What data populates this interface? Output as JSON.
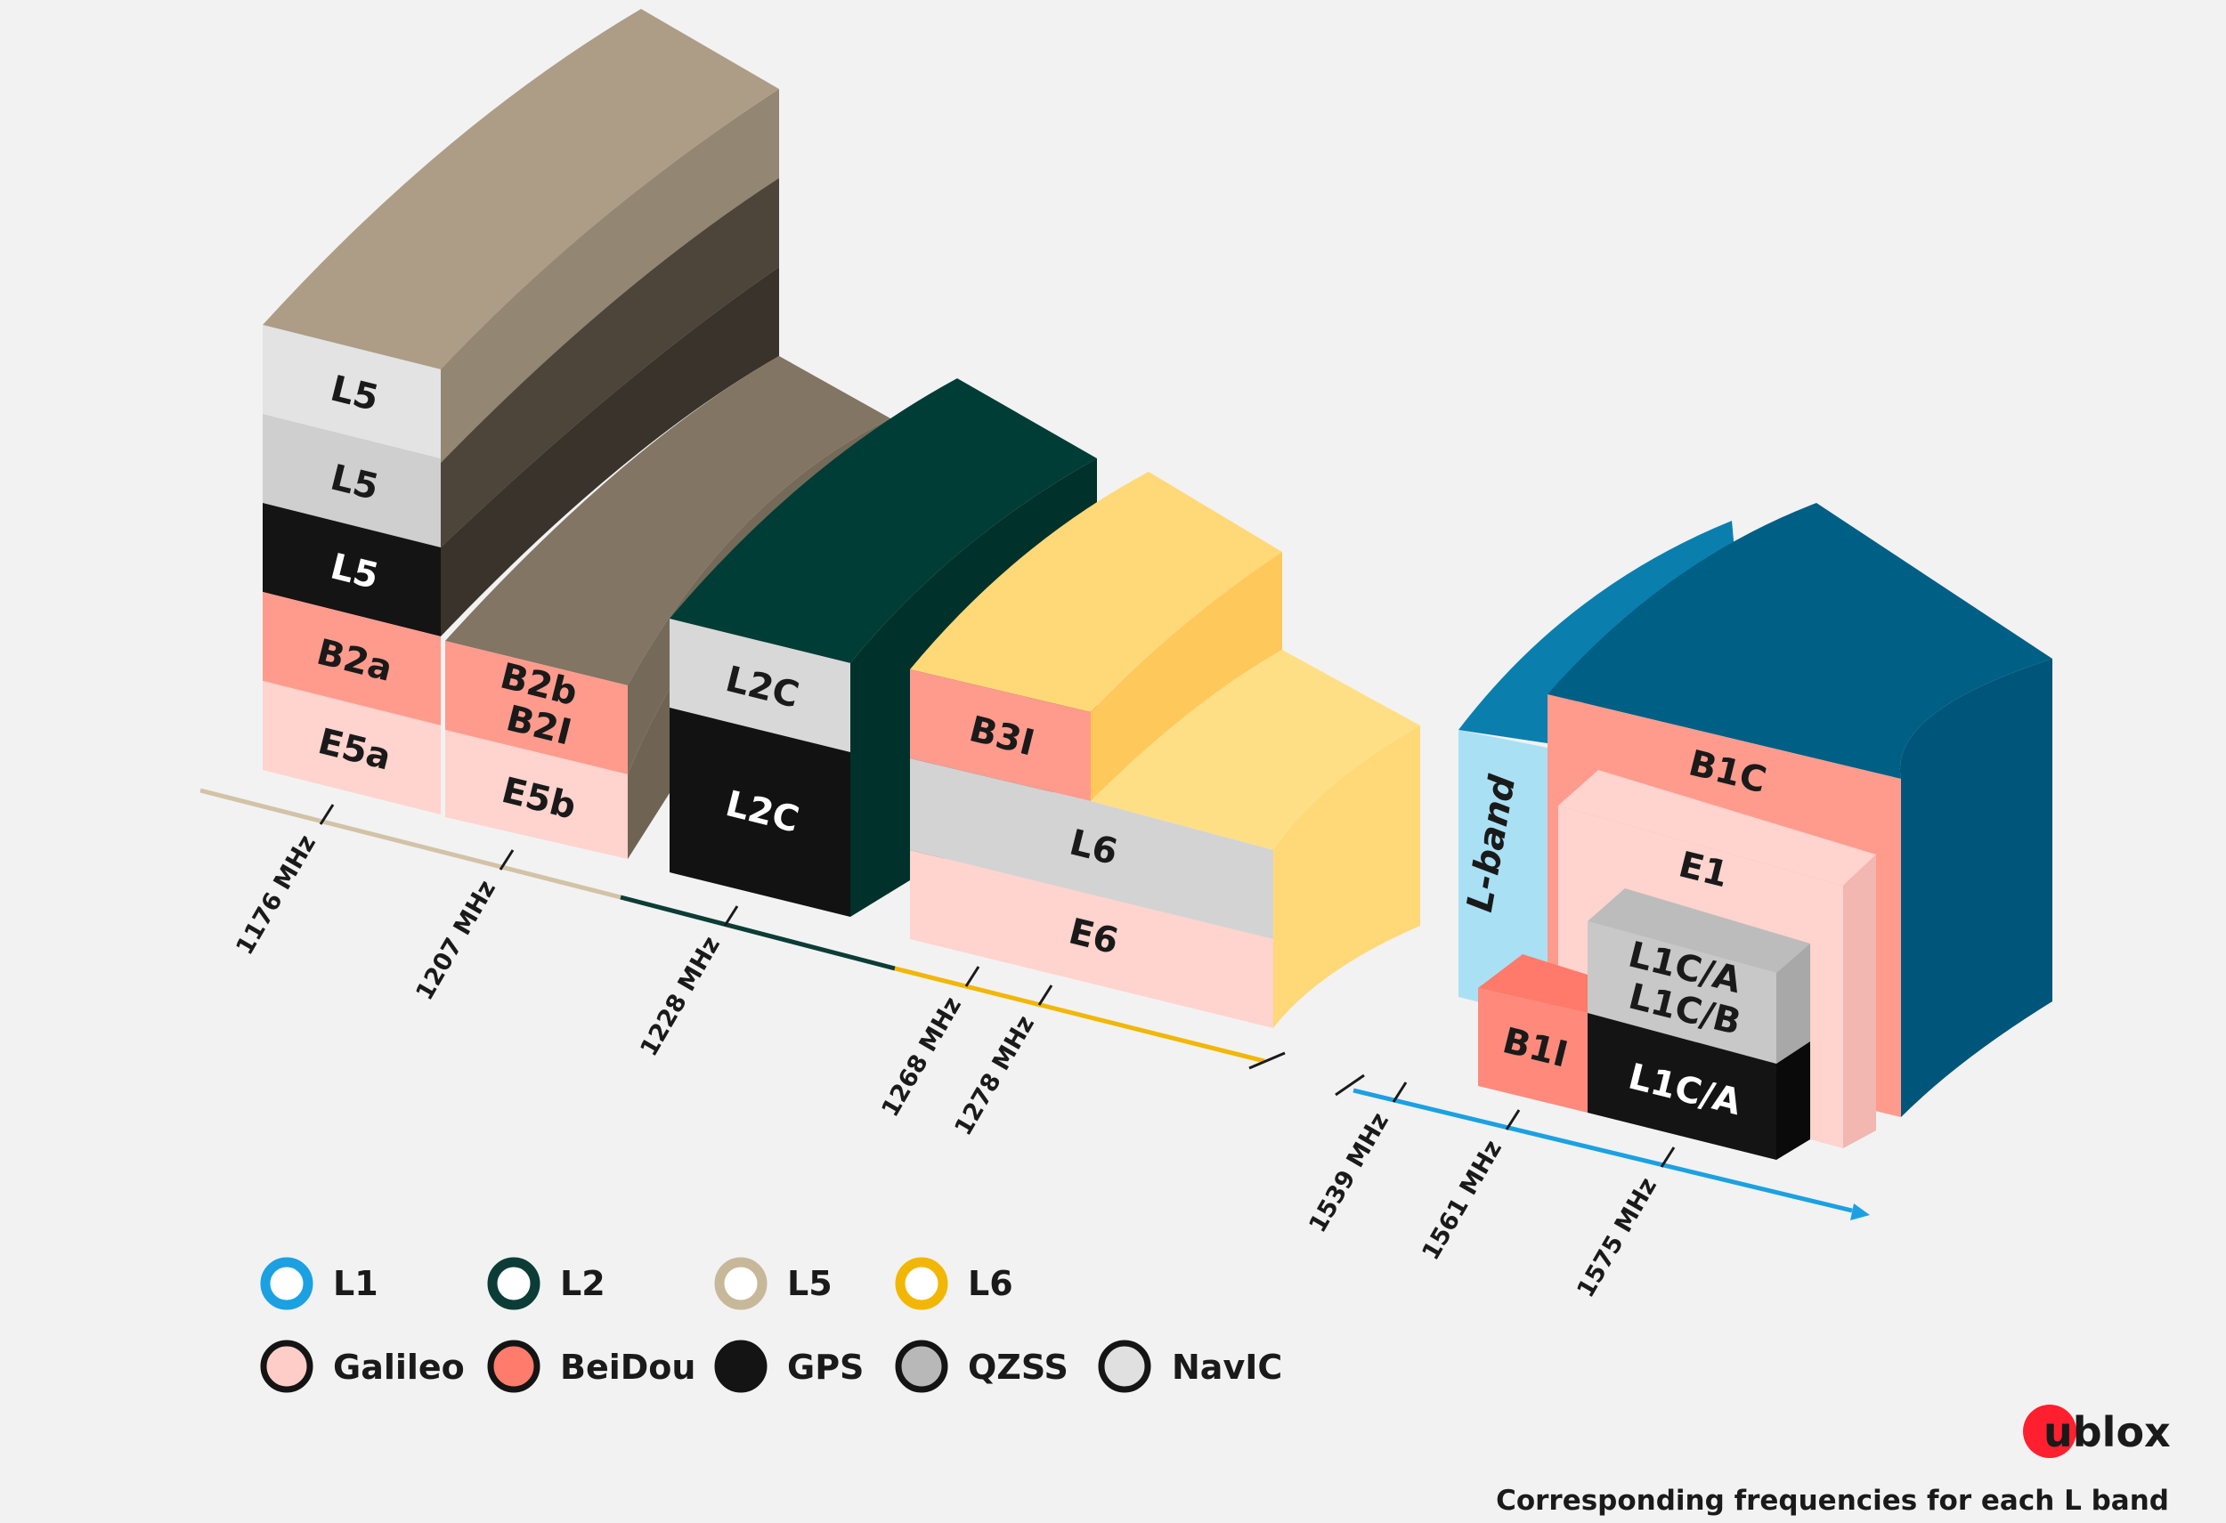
{
  "blocks": {
    "l5_navic": "L5",
    "l5_qzss": "L5",
    "l5_gps": "L5",
    "b2a": "B2a",
    "e5a": "E5a",
    "b2b": "B2b",
    "b2i": "B2I",
    "e5b": "E5b",
    "l2c_qzss": "L2C",
    "l2c_gps": "L2C",
    "b3i": "B3I",
    "l6": "L6",
    "e6": "E6",
    "l_band": "L-band",
    "b1c": "B1C",
    "e1": "E1",
    "l1ca_qzss": "L1C/A",
    "l1cb_qzss": "L1C/B",
    "l1ca_gps": "L1C/A",
    "b1i": "B1I"
  },
  "axis_ticks": [
    "1176 MHz",
    "1207 MHz",
    "1228 MHz",
    "1268 MHz",
    "1278 MHz",
    "1539 MHz",
    "1561 MHz",
    "1575 MHz"
  ],
  "legend": {
    "bands": [
      {
        "label": "L1",
        "color": "#1ba1e2"
      },
      {
        "label": "L2",
        "color": "#0b3d36"
      },
      {
        "label": "L5",
        "color": "#c8b89a"
      },
      {
        "label": "L6",
        "color": "#f2b705"
      }
    ],
    "systems": [
      {
        "label": "Galileo",
        "color": "#ffcdc8"
      },
      {
        "label": "BeiDou",
        "color": "#ff7b6b"
      },
      {
        "label": "GPS",
        "color": "#141414"
      },
      {
        "label": "QZSS",
        "color": "#b8b8b8"
      },
      {
        "label": "NavIC",
        "color": "#e0e0e0"
      }
    ]
  },
  "logo": "ublox",
  "footer": "Corresponding frequencies for each L band"
}
